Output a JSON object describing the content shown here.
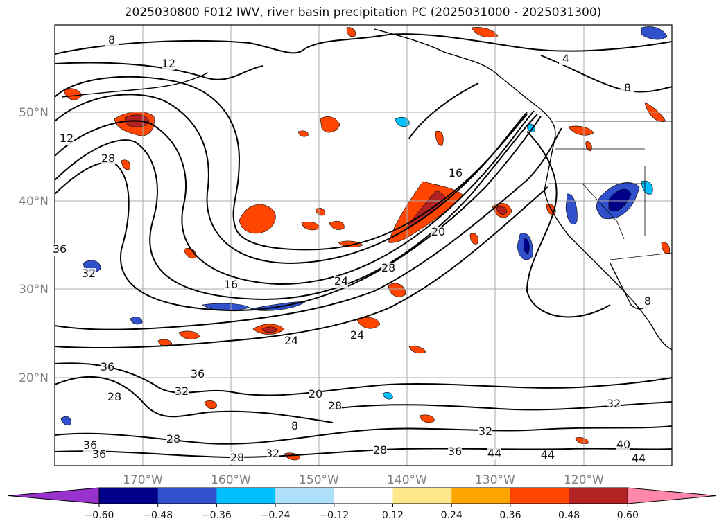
{
  "title": "2025030800 F012 IWV, river basin precipitation PC (2025031000 - 2025031300)",
  "lon_ticks": [
    "170°W",
    "160°W",
    "150°W",
    "140°W",
    "130°W",
    "120°W"
  ],
  "lat_ticks": [
    "50°N",
    "40°N",
    "30°N",
    "20°N"
  ],
  "colorbar": {
    "tick_labels": [
      "−0.60",
      "−0.48",
      "−0.36",
      "−0.24",
      "−0.12",
      "0.12",
      "0.24",
      "0.36",
      "0.48",
      "0.60"
    ],
    "colors": [
      "#9932cc",
      "#00008b",
      "#3050cc",
      "#00bfff",
      "#aee0fa",
      "#ffffff",
      "#ffe88a",
      "#ffa500",
      "#ff4500",
      "#b22222",
      "#ff88aa"
    ]
  },
  "contour_labels": [
    "8",
    "12",
    "12",
    "28",
    "36",
    "32",
    "16",
    "24",
    "28",
    "20",
    "16",
    "4",
    "8",
    "24",
    "24",
    "36",
    "36",
    "32",
    "28",
    "20",
    "28",
    "8",
    "32",
    "36",
    "28",
    "36",
    "28",
    "32",
    "28",
    "36",
    "44",
    "44",
    "40",
    "44",
    "32",
    "8"
  ],
  "colors": {
    "coast": "#000000",
    "iwv_contour": "#000000",
    "grid": "#a9a9a9"
  }
}
